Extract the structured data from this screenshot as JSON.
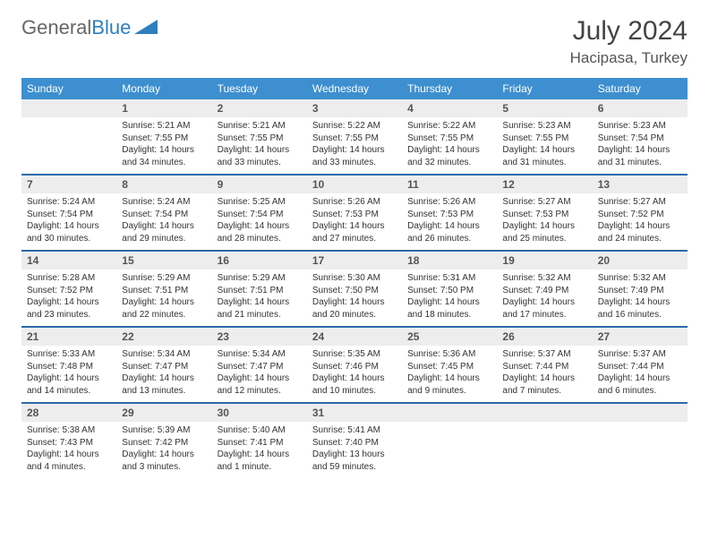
{
  "brand": {
    "general": "General",
    "blue": "Blue"
  },
  "title": "July 2024",
  "location": "Hacipasa, Turkey",
  "colors": {
    "header_bg": "#3d8fcf",
    "header_text": "#ffffff",
    "daynum_bg": "#ededed",
    "daynum_text": "#555555",
    "week_border": "#2a6ca8",
    "body_text": "#333333",
    "brand_blue": "#2f7fbf"
  },
  "dow": [
    "Sunday",
    "Monday",
    "Tuesday",
    "Wednesday",
    "Thursday",
    "Friday",
    "Saturday"
  ],
  "weeks": [
    [
      {
        "n": "",
        "empty": true
      },
      {
        "n": "1",
        "sr": "Sunrise: 5:21 AM",
        "ss": "Sunset: 7:55 PM",
        "d1": "Daylight: 14 hours",
        "d2": "and 34 minutes."
      },
      {
        "n": "2",
        "sr": "Sunrise: 5:21 AM",
        "ss": "Sunset: 7:55 PM",
        "d1": "Daylight: 14 hours",
        "d2": "and 33 minutes."
      },
      {
        "n": "3",
        "sr": "Sunrise: 5:22 AM",
        "ss": "Sunset: 7:55 PM",
        "d1": "Daylight: 14 hours",
        "d2": "and 33 minutes."
      },
      {
        "n": "4",
        "sr": "Sunrise: 5:22 AM",
        "ss": "Sunset: 7:55 PM",
        "d1": "Daylight: 14 hours",
        "d2": "and 32 minutes."
      },
      {
        "n": "5",
        "sr": "Sunrise: 5:23 AM",
        "ss": "Sunset: 7:55 PM",
        "d1": "Daylight: 14 hours",
        "d2": "and 31 minutes."
      },
      {
        "n": "6",
        "sr": "Sunrise: 5:23 AM",
        "ss": "Sunset: 7:54 PM",
        "d1": "Daylight: 14 hours",
        "d2": "and 31 minutes."
      }
    ],
    [
      {
        "n": "7",
        "sr": "Sunrise: 5:24 AM",
        "ss": "Sunset: 7:54 PM",
        "d1": "Daylight: 14 hours",
        "d2": "and 30 minutes."
      },
      {
        "n": "8",
        "sr": "Sunrise: 5:24 AM",
        "ss": "Sunset: 7:54 PM",
        "d1": "Daylight: 14 hours",
        "d2": "and 29 minutes."
      },
      {
        "n": "9",
        "sr": "Sunrise: 5:25 AM",
        "ss": "Sunset: 7:54 PM",
        "d1": "Daylight: 14 hours",
        "d2": "and 28 minutes."
      },
      {
        "n": "10",
        "sr": "Sunrise: 5:26 AM",
        "ss": "Sunset: 7:53 PM",
        "d1": "Daylight: 14 hours",
        "d2": "and 27 minutes."
      },
      {
        "n": "11",
        "sr": "Sunrise: 5:26 AM",
        "ss": "Sunset: 7:53 PM",
        "d1": "Daylight: 14 hours",
        "d2": "and 26 minutes."
      },
      {
        "n": "12",
        "sr": "Sunrise: 5:27 AM",
        "ss": "Sunset: 7:53 PM",
        "d1": "Daylight: 14 hours",
        "d2": "and 25 minutes."
      },
      {
        "n": "13",
        "sr": "Sunrise: 5:27 AM",
        "ss": "Sunset: 7:52 PM",
        "d1": "Daylight: 14 hours",
        "d2": "and 24 minutes."
      }
    ],
    [
      {
        "n": "14",
        "sr": "Sunrise: 5:28 AM",
        "ss": "Sunset: 7:52 PM",
        "d1": "Daylight: 14 hours",
        "d2": "and 23 minutes."
      },
      {
        "n": "15",
        "sr": "Sunrise: 5:29 AM",
        "ss": "Sunset: 7:51 PM",
        "d1": "Daylight: 14 hours",
        "d2": "and 22 minutes."
      },
      {
        "n": "16",
        "sr": "Sunrise: 5:29 AM",
        "ss": "Sunset: 7:51 PM",
        "d1": "Daylight: 14 hours",
        "d2": "and 21 minutes."
      },
      {
        "n": "17",
        "sr": "Sunrise: 5:30 AM",
        "ss": "Sunset: 7:50 PM",
        "d1": "Daylight: 14 hours",
        "d2": "and 20 minutes."
      },
      {
        "n": "18",
        "sr": "Sunrise: 5:31 AM",
        "ss": "Sunset: 7:50 PM",
        "d1": "Daylight: 14 hours",
        "d2": "and 18 minutes."
      },
      {
        "n": "19",
        "sr": "Sunrise: 5:32 AM",
        "ss": "Sunset: 7:49 PM",
        "d1": "Daylight: 14 hours",
        "d2": "and 17 minutes."
      },
      {
        "n": "20",
        "sr": "Sunrise: 5:32 AM",
        "ss": "Sunset: 7:49 PM",
        "d1": "Daylight: 14 hours",
        "d2": "and 16 minutes."
      }
    ],
    [
      {
        "n": "21",
        "sr": "Sunrise: 5:33 AM",
        "ss": "Sunset: 7:48 PM",
        "d1": "Daylight: 14 hours",
        "d2": "and 14 minutes."
      },
      {
        "n": "22",
        "sr": "Sunrise: 5:34 AM",
        "ss": "Sunset: 7:47 PM",
        "d1": "Daylight: 14 hours",
        "d2": "and 13 minutes."
      },
      {
        "n": "23",
        "sr": "Sunrise: 5:34 AM",
        "ss": "Sunset: 7:47 PM",
        "d1": "Daylight: 14 hours",
        "d2": "and 12 minutes."
      },
      {
        "n": "24",
        "sr": "Sunrise: 5:35 AM",
        "ss": "Sunset: 7:46 PM",
        "d1": "Daylight: 14 hours",
        "d2": "and 10 minutes."
      },
      {
        "n": "25",
        "sr": "Sunrise: 5:36 AM",
        "ss": "Sunset: 7:45 PM",
        "d1": "Daylight: 14 hours",
        "d2": "and 9 minutes."
      },
      {
        "n": "26",
        "sr": "Sunrise: 5:37 AM",
        "ss": "Sunset: 7:44 PM",
        "d1": "Daylight: 14 hours",
        "d2": "and 7 minutes."
      },
      {
        "n": "27",
        "sr": "Sunrise: 5:37 AM",
        "ss": "Sunset: 7:44 PM",
        "d1": "Daylight: 14 hours",
        "d2": "and 6 minutes."
      }
    ],
    [
      {
        "n": "28",
        "sr": "Sunrise: 5:38 AM",
        "ss": "Sunset: 7:43 PM",
        "d1": "Daylight: 14 hours",
        "d2": "and 4 minutes."
      },
      {
        "n": "29",
        "sr": "Sunrise: 5:39 AM",
        "ss": "Sunset: 7:42 PM",
        "d1": "Daylight: 14 hours",
        "d2": "and 3 minutes."
      },
      {
        "n": "30",
        "sr": "Sunrise: 5:40 AM",
        "ss": "Sunset: 7:41 PM",
        "d1": "Daylight: 14 hours",
        "d2": "and 1 minute."
      },
      {
        "n": "31",
        "sr": "Sunrise: 5:41 AM",
        "ss": "Sunset: 7:40 PM",
        "d1": "Daylight: 13 hours",
        "d2": "and 59 minutes."
      },
      {
        "n": "",
        "empty": true
      },
      {
        "n": "",
        "empty": true
      },
      {
        "n": "",
        "empty": true
      }
    ]
  ]
}
